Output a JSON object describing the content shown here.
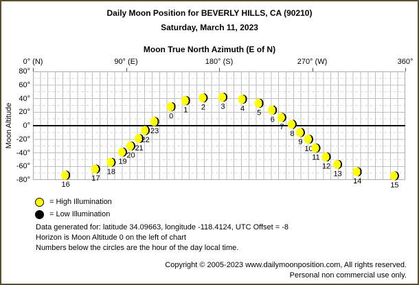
{
  "window": {
    "background": "#ffffff",
    "border_color": "#5a5128"
  },
  "header": {
    "title": "Daily Moon Position for BEVERLY HILLS, CA (90210)",
    "subtitle": "Saturday, March 11, 2023"
  },
  "chart_data": {
    "type": "scatter",
    "title": "Moon True North Azimuth (E of N)",
    "xlabel": "Moon True North Azimuth (E of N)",
    "ylabel": "Moon Altitude",
    "xlim": [
      0,
      360
    ],
    "ylim": [
      -80,
      80
    ],
    "grid": true,
    "legend_position": "bottom-left",
    "x_ticks": [
      {
        "value": 0,
        "label": "0° (N)"
      },
      {
        "value": 90,
        "label": "90° (E)"
      },
      {
        "value": 180,
        "label": "180° (S)"
      },
      {
        "value": 270,
        "label": "270° (W)"
      },
      {
        "value": 360,
        "label": "360°"
      }
    ],
    "y_ticks": [
      {
        "value": 80,
        "label": "80°"
      },
      {
        "value": 60,
        "label": "60°"
      },
      {
        "value": 40,
        "label": "40°"
      },
      {
        "value": 20,
        "label": "20°"
      },
      {
        "value": 0,
        "label": "0°"
      },
      {
        "value": -20,
        "label": "-20°"
      },
      {
        "value": -40,
        "label": "-40°"
      },
      {
        "value": -60,
        "label": "-60°"
      },
      {
        "value": -80,
        "label": "-80°"
      }
    ],
    "horizon_altitude": 0,
    "point_color": "#ffff00",
    "point_shadow_color": "#000000",
    "grid_colors": {
      "solid": "#bdbdbd",
      "dashed": "#d9d9d9",
      "frame": "#ababab",
      "horizon": "#000000"
    },
    "points": [
      {
        "hour": 0,
        "azimuth": 133,
        "altitude": 28,
        "illumination": "high"
      },
      {
        "hour": 1,
        "azimuth": 147,
        "altitude": 37,
        "illumination": "high"
      },
      {
        "hour": 2,
        "azimuth": 164,
        "altitude": 41,
        "illumination": "high"
      },
      {
        "hour": 3,
        "azimuth": 183,
        "altitude": 42,
        "illumination": "high"
      },
      {
        "hour": 4,
        "azimuth": 202,
        "altitude": 39,
        "illumination": "high"
      },
      {
        "hour": 5,
        "azimuth": 218,
        "altitude": 33,
        "illumination": "high"
      },
      {
        "hour": 6,
        "azimuth": 231,
        "altitude": 23,
        "illumination": "high"
      },
      {
        "hour": 7,
        "azimuth": 240,
        "altitude": 12,
        "illumination": "high"
      },
      {
        "hour": 8,
        "azimuth": 250,
        "altitude": 2,
        "illumination": "high"
      },
      {
        "hour": 9,
        "azimuth": 258,
        "altitude": -10,
        "illumination": "high"
      },
      {
        "hour": 10,
        "azimuth": 266,
        "altitude": -20,
        "illumination": "high"
      },
      {
        "hour": 11,
        "azimuth": 273,
        "altitude": -33,
        "illumination": "high"
      },
      {
        "hour": 12,
        "azimuth": 283,
        "altitude": -46,
        "illumination": "high"
      },
      {
        "hour": 13,
        "azimuth": 294,
        "altitude": -57,
        "illumination": "high"
      },
      {
        "hour": 14,
        "azimuth": 313,
        "altitude": -68,
        "illumination": "high"
      },
      {
        "hour": 15,
        "azimuth": 349,
        "altitude": -74,
        "illumination": "high"
      },
      {
        "hour": 16,
        "azimuth": 31,
        "altitude": -73,
        "illumination": "high"
      },
      {
        "hour": 17,
        "azimuth": 60,
        "altitude": -64,
        "illumination": "high"
      },
      {
        "hour": 18,
        "azimuth": 75,
        "altitude": -54,
        "illumination": "high"
      },
      {
        "hour": 19,
        "azimuth": 86,
        "altitude": -39,
        "illumination": "high"
      },
      {
        "hour": 20,
        "azimuth": 94,
        "altitude": -30,
        "illumination": "high"
      },
      {
        "hour": 21,
        "azimuth": 102,
        "altitude": -19,
        "illumination": "high"
      },
      {
        "hour": 22,
        "azimuth": 108,
        "altitude": -7,
        "illumination": "high"
      },
      {
        "hour": 23,
        "azimuth": 117,
        "altitude": 6,
        "illumination": "high"
      }
    ]
  },
  "legend": [
    {
      "name": "high-illumination",
      "color": "#ffff00",
      "label": "= High Illumination"
    },
    {
      "name": "low-illumination",
      "color": "#000000",
      "label": "= Low Illumination"
    }
  ],
  "footer": {
    "lines": [
      "Data generated for: latitude 34.09663, longitude -118.4124, UTC Offset = -8",
      "Horizon is Moon Altitude 0 on the left of chart",
      "Numbers below the circles are the hour of the day local time."
    ],
    "copyright": "Copyright © 2005-2023 www.dailymoonposition.com, All rights reserved.",
    "personal": "Personal non commercial use only."
  }
}
